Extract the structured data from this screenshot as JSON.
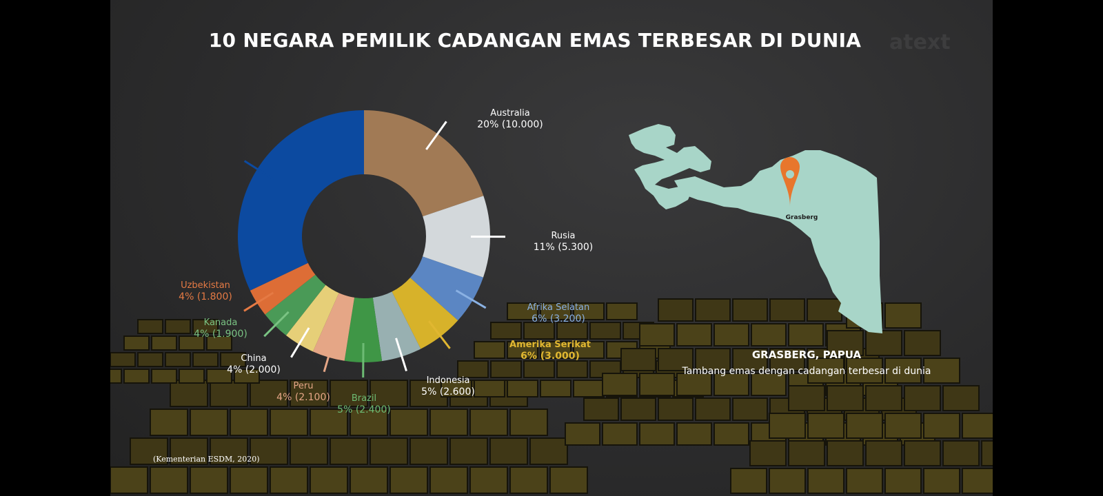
{
  "title": "10 NEGARA PEMILIK CADANGAN EMAS TERBESAR DI DUNIA",
  "watermark": "atext",
  "source": "(Kementerian ESDM, 2020)",
  "map": {
    "pin_label": "Grasberg",
    "caption_title": "GRASBERG, PAPUA",
    "caption_subtitle": "Tambang emas dengan cadangan terbesar di dunia",
    "land_color": "#a8d5c8",
    "pin_color": "#e8762c"
  },
  "chart_data": {
    "type": "pie",
    "variant": "donut",
    "slices": [
      {
        "name": "Australia",
        "percent": "20%",
        "value": 10000,
        "value_label": "(10.000)",
        "color": "#a17a55"
      },
      {
        "name": "Rusia",
        "percent": "11%",
        "value": 5300,
        "value_label": "(5.300)",
        "color": "#d3d8db"
      },
      {
        "name": "Afrika Selatan",
        "percent": "6%",
        "value": 3200,
        "value_label": "(3.200)",
        "color": "#5b86c3"
      },
      {
        "name": "Amerika Serikat",
        "percent": "6%",
        "value": 3000,
        "value_label": "(3.000)",
        "color": "#d7b22a"
      },
      {
        "name": "Indonesia",
        "percent": "5%",
        "value": 2600,
        "value_label": "(2.600)",
        "color": "#98b0b1"
      },
      {
        "name": "Brazil",
        "percent": "5%",
        "value": 2400,
        "value_label": "(2.400)",
        "color": "#3f9646"
      },
      {
        "name": "Peru",
        "percent": "4%",
        "value": 2100,
        "value_label": "(2.100)",
        "color": "#e5a686"
      },
      {
        "name": "China",
        "percent": "4%",
        "value": 2000,
        "value_label": "(2.000)",
        "color": "#e6cf78"
      },
      {
        "name": "Kanada",
        "percent": "4%",
        "value": 1900,
        "value_label": "(1.900)",
        "color": "#4a9a57"
      },
      {
        "name": "Uzbekistan",
        "percent": "4%",
        "value": 1800,
        "value_label": "(1.800)",
        "color": "#dd6d36"
      },
      {
        "name": "",
        "percent": "",
        "value": 16200,
        "value_label": "",
        "color": "#0c4aa0"
      }
    ]
  }
}
